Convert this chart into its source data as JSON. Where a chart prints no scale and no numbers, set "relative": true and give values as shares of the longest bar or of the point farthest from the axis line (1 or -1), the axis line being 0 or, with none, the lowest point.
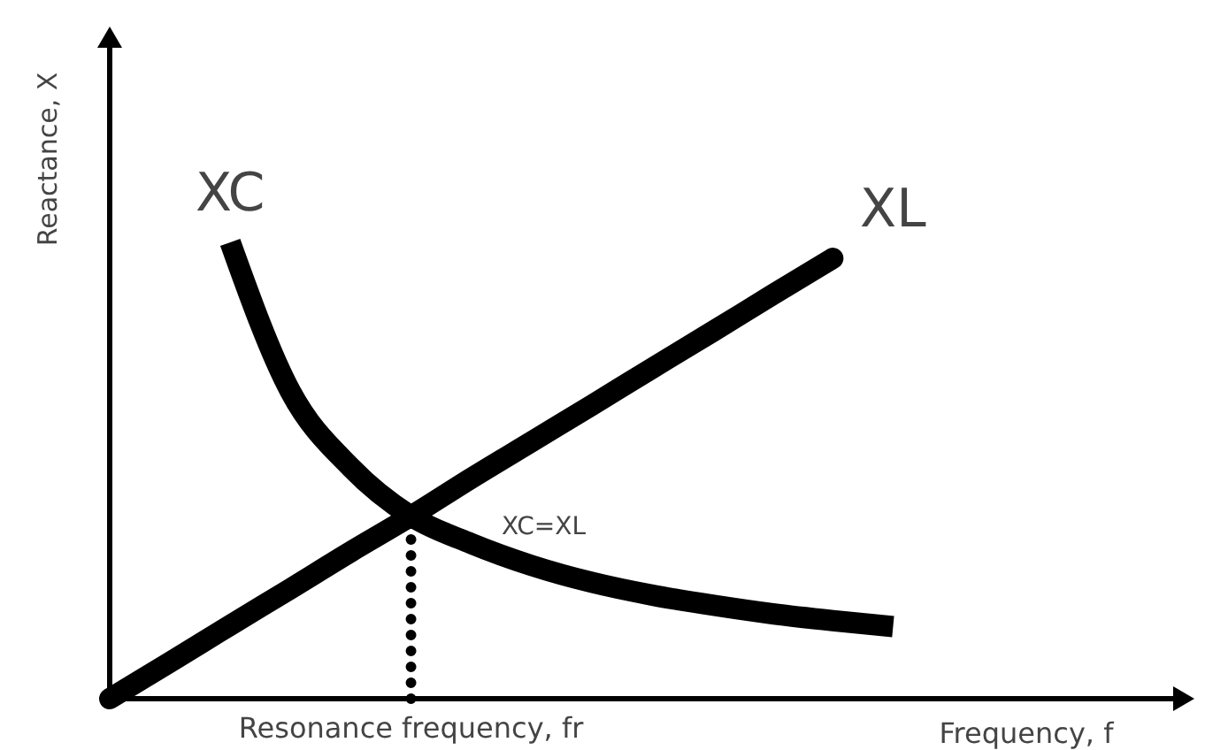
{
  "chart_data": {
    "type": "line",
    "relative": true,
    "xlabel": "Frequency, f",
    "ylabel": "Reactance, X",
    "categories": [
      null,
      null,
      null,
      null,
      null,
      null,
      null,
      null,
      null,
      null,
      null,
      null,
      null,
      null,
      null,
      null,
      null,
      null,
      null
    ],
    "series": [
      {
        "name": "XC",
        "color": "#000000",
        "values": [
          null,
          null,
          1,
          0.673,
          0.507,
          0.4,
          0.34,
          0.292,
          0.255,
          0.227,
          0.205,
          0.186,
          0.171,
          0.158,
          null,
          null,
          null,
          null,
          null
        ]
      },
      {
        "name": "XL",
        "color": "#000000",
        "values": [
          0,
          0.08,
          0.161,
          0.241,
          0.322,
          0.4,
          0.483,
          0.563,
          0.643,
          0.724,
          0.804,
          0.885,
          0.965,
          null,
          null,
          null,
          null,
          null,
          null
        ]
      }
    ],
    "annotations": [
      "XC=XL",
      "Resonance frequency, fr"
    ],
    "marker": "none",
    "line_style": "solid"
  }
}
